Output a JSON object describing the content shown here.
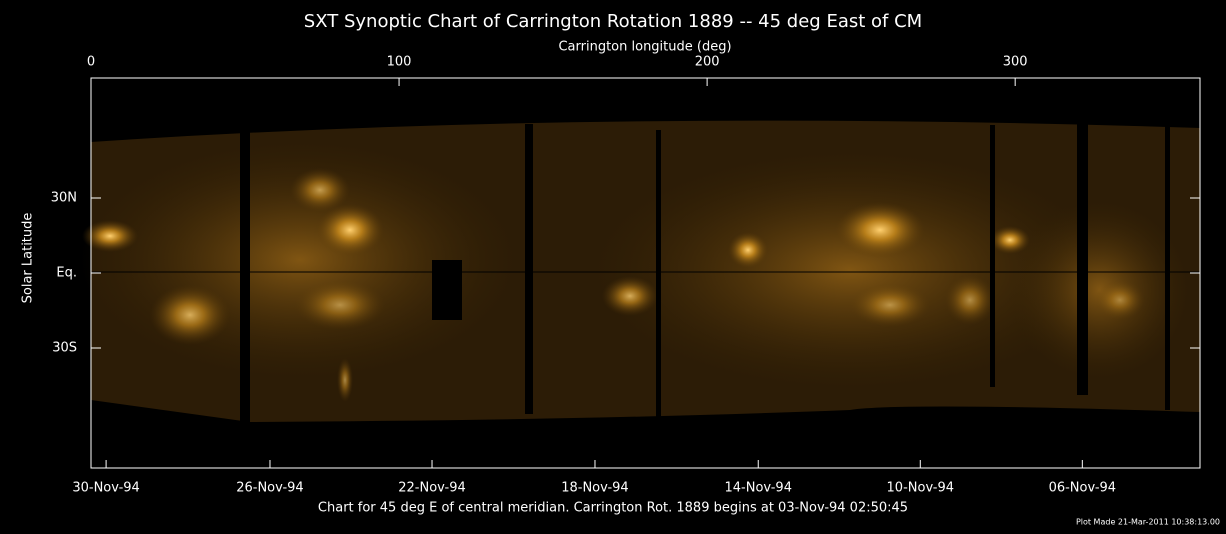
{
  "chart_data": {
    "type": "image",
    "title": "SXT Synoptic Chart of Carrington Rotation 1889 -- 45 deg East of CM",
    "xlabel": "Carrington longitude (deg)",
    "ylabel": "Solar Latitude",
    "xlim": [
      0,
      360
    ],
    "xticks": [
      0,
      100,
      200,
      300
    ],
    "x2ticks": [
      {
        "value": 4.9,
        "label": "30-Nov-94"
      },
      {
        "value": 58.1,
        "label": "26-Nov-94"
      },
      {
        "value": 110.7,
        "label": "22-Nov-94"
      },
      {
        "value": 163.6,
        "label": "18-Nov-94"
      },
      {
        "value": 216.6,
        "label": "14-Nov-94"
      },
      {
        "value": 269.2,
        "label": "10-Nov-94"
      },
      {
        "value": 321.8,
        "label": "06-Nov-94"
      }
    ],
    "ylim": [
      -78,
      78
    ],
    "yticks": [
      {
        "value": 30,
        "label": "30N"
      },
      {
        "value": 0,
        "label": "Eq."
      },
      {
        "value": -30,
        "label": "30S"
      }
    ],
    "caption": "Chart for 45 deg E of central meridian.  Carrington Rot. 1889 begins at 03-Nov-94 02:50:45",
    "footnote": "Plot Made 21-Mar-2011 10:38:13.00"
  }
}
